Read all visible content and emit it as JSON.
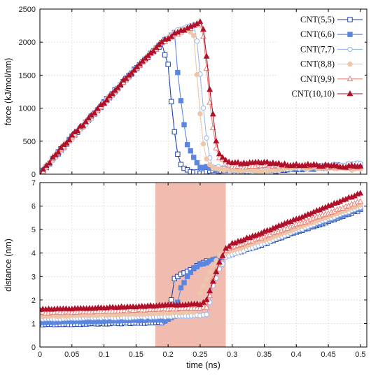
{
  "chart_data": [
    {
      "type": "line",
      "title": "",
      "xlabel": "",
      "ylabel": "force (kJ/mol/nm)",
      "xlim": [
        0,
        0.51
      ],
      "ylim": [
        0,
        2500
      ],
      "xticks": [
        0,
        0.05,
        0.1,
        0.15,
        0.2,
        0.25,
        0.3,
        0.35,
        0.4,
        0.45,
        0.5
      ],
      "xtick_labels": [
        "",
        "",
        "",
        "",
        "",
        "",
        "",
        "",
        "",
        "",
        ""
      ],
      "yticks": [
        0,
        500,
        1000,
        1500,
        2000,
        2500
      ],
      "ytick_labels": [
        "0",
        "500",
        "1000",
        "1500",
        "2000",
        "2500"
      ],
      "grid": true,
      "legend": "top-right",
      "series": [
        {
          "name": "CNT(5,5)",
          "color": "#1a3fa8",
          "marker": "square-open",
          "x": [
            0,
            0.02,
            0.05,
            0.08,
            0.1,
            0.13,
            0.16,
            0.19,
            0.2,
            0.205,
            0.21,
            0.215,
            0.22,
            0.225,
            0.23,
            0.24,
            0.25,
            0.27,
            0.3,
            0.35,
            0.4,
            0.45,
            0.5
          ],
          "y": [
            0,
            230,
            560,
            870,
            1080,
            1400,
            1700,
            1980,
            1650,
            1100,
            650,
            300,
            150,
            80,
            60,
            40,
            30,
            50,
            60,
            50,
            80,
            120,
            150
          ]
        },
        {
          "name": "CNT(6,6)",
          "color": "#5b86e0",
          "marker": "square-filled",
          "x": [
            0,
            0.02,
            0.05,
            0.08,
            0.1,
            0.13,
            0.16,
            0.19,
            0.21,
            0.215,
            0.22,
            0.225,
            0.23,
            0.24,
            0.25,
            0.26,
            0.27,
            0.3,
            0.35,
            0.4,
            0.45,
            0.5
          ],
          "y": [
            0,
            230,
            560,
            870,
            1080,
            1400,
            1700,
            1980,
            2150,
            1550,
            1100,
            750,
            450,
            250,
            120,
            100,
            80,
            70,
            60,
            80,
            100,
            130
          ]
        },
        {
          "name": "CNT(7,7)",
          "color": "#9bb8ec",
          "marker": "circle-open",
          "x": [
            0,
            0.02,
            0.05,
            0.08,
            0.1,
            0.13,
            0.16,
            0.19,
            0.21,
            0.23,
            0.24,
            0.245,
            0.25,
            0.255,
            0.26,
            0.265,
            0.27,
            0.3,
            0.35,
            0.4,
            0.45,
            0.5
          ],
          "y": [
            0,
            220,
            540,
            850,
            1060,
            1380,
            1690,
            1980,
            2150,
            2250,
            2280,
            2000,
            1500,
            1000,
            550,
            250,
            120,
            60,
            50,
            90,
            130,
            160
          ]
        },
        {
          "name": "CNT(8,8)",
          "color": "#eec6aa",
          "marker": "circle-filled",
          "x": [
            0,
            0.02,
            0.05,
            0.08,
            0.1,
            0.13,
            0.16,
            0.19,
            0.21,
            0.23,
            0.24,
            0.245,
            0.25,
            0.255,
            0.26,
            0.265,
            0.27,
            0.3,
            0.35,
            0.4,
            0.45,
            0.5
          ],
          "y": [
            0,
            230,
            560,
            870,
            1080,
            1400,
            1700,
            1990,
            2120,
            2200,
            2100,
            1500,
            900,
            450,
            250,
            150,
            100,
            60,
            50,
            100,
            90,
            70
          ]
        },
        {
          "name": "CNT(9,9)",
          "color": "#e8837a",
          "marker": "triangle-open",
          "x": [
            0,
            0.02,
            0.05,
            0.08,
            0.1,
            0.13,
            0.16,
            0.19,
            0.21,
            0.23,
            0.245,
            0.25,
            0.255,
            0.26,
            0.265,
            0.27,
            0.275,
            0.28,
            0.3,
            0.35,
            0.4,
            0.45,
            0.5
          ],
          "y": [
            0,
            230,
            560,
            870,
            1080,
            1400,
            1700,
            1990,
            2110,
            2200,
            2270,
            2250,
            2100,
            1600,
            1100,
            700,
            400,
            250,
            120,
            130,
            130,
            120,
            100
          ]
        },
        {
          "name": "CNT(10,10)",
          "color": "#b0102a",
          "marker": "triangle-filled",
          "x": [
            0,
            0.02,
            0.05,
            0.08,
            0.1,
            0.13,
            0.16,
            0.19,
            0.21,
            0.23,
            0.245,
            0.25,
            0.255,
            0.26,
            0.265,
            0.27,
            0.275,
            0.28,
            0.3,
            0.35,
            0.4,
            0.45,
            0.5
          ],
          "y": [
            0,
            240,
            580,
            880,
            1090,
            1410,
            1710,
            2000,
            2120,
            2210,
            2290,
            2300,
            2200,
            1800,
            1300,
            900,
            500,
            300,
            160,
            170,
            140,
            130,
            110
          ]
        }
      ]
    },
    {
      "type": "line",
      "title": "",
      "xlabel": "time (ns)",
      "ylabel": "distance (nm)",
      "xlim": [
        0,
        0.51
      ],
      "ylim": [
        0,
        7
      ],
      "xticks": [
        0,
        0.05,
        0.1,
        0.15,
        0.2,
        0.25,
        0.3,
        0.35,
        0.4,
        0.45,
        0.5
      ],
      "xtick_labels": [
        "0",
        "0.05",
        "0.1",
        "0.15",
        "0.2",
        "0.25",
        "0.3",
        "0.35",
        "0.4",
        "0.45",
        "0.5"
      ],
      "yticks": [
        0,
        1,
        2,
        3,
        4,
        5,
        6,
        7
      ],
      "ytick_labels": [
        "0",
        "1",
        "2",
        "3",
        "4",
        "5",
        "6",
        "7"
      ],
      "grid": true,
      "shaded_region": {
        "x": [
          0.18,
          0.29
        ],
        "color": "#f0b4a6"
      },
      "series": [
        {
          "name": "CNT(5,5)",
          "color": "#1a3fa8",
          "marker": "square-open",
          "x": [
            0,
            0.05,
            0.1,
            0.15,
            0.19,
            0.2,
            0.205,
            0.21,
            0.22,
            0.23,
            0.24,
            0.25,
            0.26,
            0.27,
            0.28,
            0.3,
            0.35,
            0.4,
            0.45,
            0.5
          ],
          "y": [
            0.95,
            0.97,
            1.0,
            1.02,
            1.05,
            1.2,
            2.0,
            2.9,
            3.1,
            3.2,
            3.35,
            3.55,
            3.65,
            3.7,
            3.8,
            3.95,
            4.4,
            4.9,
            5.35,
            5.85
          ]
        },
        {
          "name": "CNT(6,6)",
          "color": "#5b86e0",
          "marker": "square-filled",
          "x": [
            0,
            0.05,
            0.1,
            0.15,
            0.2,
            0.21,
            0.215,
            0.22,
            0.23,
            0.24,
            0.25,
            0.26,
            0.27,
            0.28,
            0.3,
            0.35,
            0.4,
            0.45,
            0.5
          ],
          "y": [
            1.05,
            1.08,
            1.1,
            1.13,
            1.17,
            1.3,
            1.9,
            2.5,
            3.0,
            3.35,
            3.5,
            3.6,
            3.7,
            3.8,
            3.95,
            4.45,
            4.95,
            5.4,
            5.9
          ]
        },
        {
          "name": "CNT(7,7)",
          "color": "#9bb8ec",
          "marker": "circle-open",
          "x": [
            0,
            0.05,
            0.1,
            0.15,
            0.2,
            0.25,
            0.26,
            0.265,
            0.27,
            0.28,
            0.29,
            0.3,
            0.35,
            0.4,
            0.45,
            0.5
          ],
          "y": [
            1.2,
            1.22,
            1.25,
            1.27,
            1.3,
            1.35,
            1.4,
            1.9,
            2.6,
            3.3,
            3.8,
            3.95,
            4.4,
            4.95,
            5.45,
            5.95
          ]
        },
        {
          "name": "CNT(8,8)",
          "color": "#eec6aa",
          "marker": "circle-filled",
          "x": [
            0,
            0.05,
            0.1,
            0.15,
            0.2,
            0.24,
            0.245,
            0.25,
            0.26,
            0.27,
            0.28,
            0.3,
            0.35,
            0.4,
            0.45,
            0.5
          ],
          "y": [
            1.3,
            1.33,
            1.37,
            1.4,
            1.45,
            1.5,
            1.8,
            2.3,
            2.9,
            3.5,
            3.9,
            4.1,
            4.55,
            5.05,
            5.55,
            6.05
          ]
        },
        {
          "name": "CNT(9,9)",
          "color": "#e8837a",
          "marker": "triangle-open",
          "x": [
            0,
            0.05,
            0.1,
            0.15,
            0.2,
            0.25,
            0.26,
            0.265,
            0.27,
            0.28,
            0.29,
            0.3,
            0.35,
            0.4,
            0.45,
            0.5
          ],
          "y": [
            1.45,
            1.48,
            1.52,
            1.57,
            1.62,
            1.66,
            1.7,
            2.2,
            2.9,
            3.6,
            4.1,
            4.25,
            4.7,
            5.2,
            5.7,
            6.2
          ]
        },
        {
          "name": "CNT(10,10)",
          "color": "#b0102a",
          "marker": "triangle-filled",
          "x": [
            0,
            0.05,
            0.1,
            0.15,
            0.2,
            0.25,
            0.26,
            0.27,
            0.28,
            0.29,
            0.3,
            0.35,
            0.4,
            0.45,
            0.5
          ],
          "y": [
            1.6,
            1.63,
            1.67,
            1.72,
            1.78,
            1.82,
            2.0,
            2.8,
            3.6,
            4.2,
            4.4,
            4.9,
            5.45,
            6.0,
            6.55
          ]
        }
      ]
    }
  ]
}
